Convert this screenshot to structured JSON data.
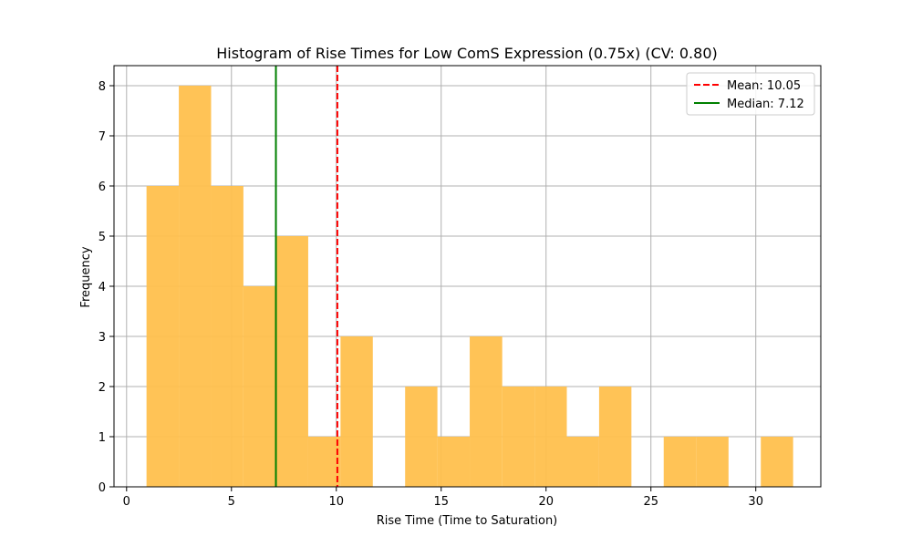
{
  "chart_data": {
    "type": "histogram",
    "title": "Histogram of Rise Times for Low ComS Expression (0.75x) (CV: 0.80)",
    "xlabel": "Rise Time (Time to Saturation)",
    "ylabel": "Frequency",
    "xlim": [
      -0.6,
      33.1
    ],
    "ylim": [
      0,
      8.4
    ],
    "xticks": [
      0,
      5,
      10,
      15,
      20,
      25,
      30
    ],
    "yticks": [
      0,
      1,
      2,
      3,
      4,
      5,
      6,
      7,
      8
    ],
    "grid": true,
    "legend_position": "top-right",
    "bar_color": "#ffc04d",
    "bins": [
      {
        "x0": 0.95,
        "x1": 2.49,
        "count": 6
      },
      {
        "x0": 2.49,
        "x1": 4.03,
        "count": 8
      },
      {
        "x0": 4.03,
        "x1": 5.57,
        "count": 6
      },
      {
        "x0": 5.57,
        "x1": 7.12,
        "count": 4
      },
      {
        "x0": 7.12,
        "x1": 8.66,
        "count": 5
      },
      {
        "x0": 8.66,
        "x1": 10.2,
        "count": 1
      },
      {
        "x0": 10.2,
        "x1": 11.74,
        "count": 3
      },
      {
        "x0": 11.74,
        "x1": 13.28,
        "count": 0
      },
      {
        "x0": 13.28,
        "x1": 14.82,
        "count": 2
      },
      {
        "x0": 14.82,
        "x1": 16.36,
        "count": 1
      },
      {
        "x0": 16.36,
        "x1": 17.91,
        "count": 3
      },
      {
        "x0": 17.91,
        "x1": 19.45,
        "count": 2
      },
      {
        "x0": 19.45,
        "x1": 20.99,
        "count": 2
      },
      {
        "x0": 20.99,
        "x1": 22.53,
        "count": 1
      },
      {
        "x0": 22.53,
        "x1": 24.07,
        "count": 2
      },
      {
        "x0": 24.07,
        "x1": 25.61,
        "count": 0
      },
      {
        "x0": 25.61,
        "x1": 27.15,
        "count": 1
      },
      {
        "x0": 27.15,
        "x1": 28.7,
        "count": 1
      },
      {
        "x0": 28.7,
        "x1": 30.24,
        "count": 0
      },
      {
        "x0": 30.24,
        "x1": 31.78,
        "count": 1
      }
    ],
    "reference_lines": [
      {
        "label": "Mean: 10.05",
        "value": 10.05,
        "color": "#ff0000",
        "style": "dashed"
      },
      {
        "label": "Median: 7.12",
        "value": 7.12,
        "color": "#008000",
        "style": "solid"
      }
    ]
  }
}
